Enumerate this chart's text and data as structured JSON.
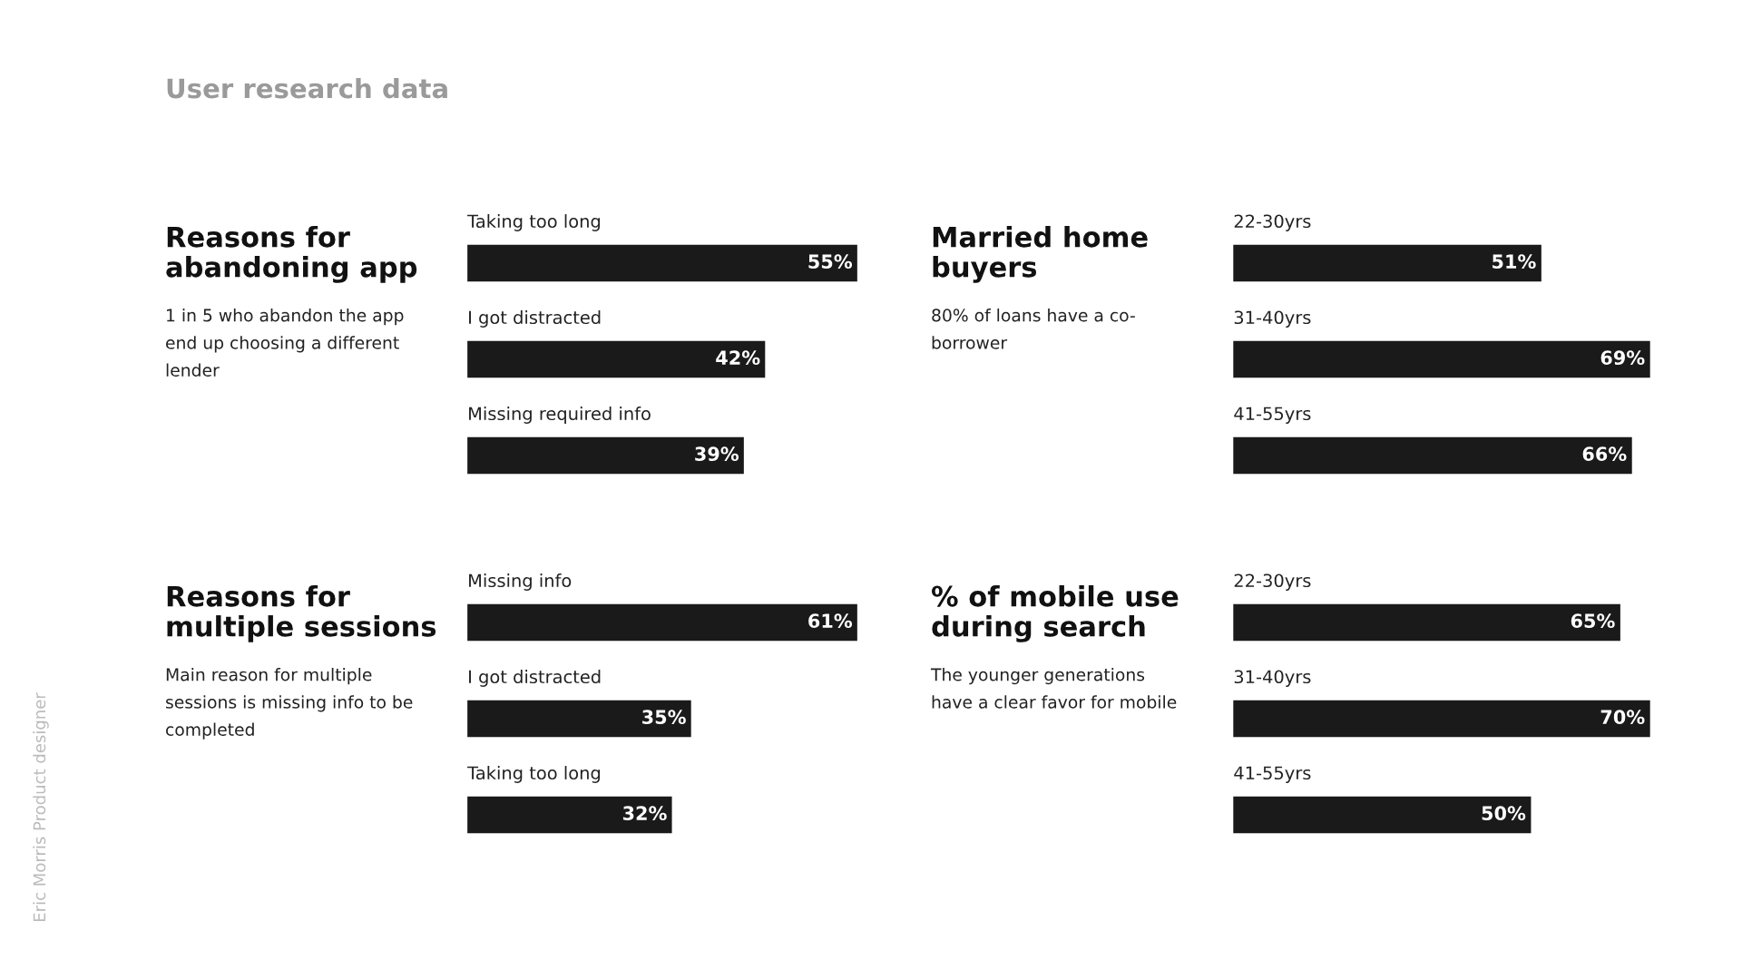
{
  "chart_data": [
    {
      "type": "bar",
      "orientation": "horizontal",
      "title": "Reasons for\nabandoning app",
      "subtitle": "1 in 5 who abandon the app\nend up choosing a different\nlender",
      "annotations": [
        "User research data",
        "Eric Morris Product designer"
      ],
      "categories": [
        "Taking too long",
        "I got distracted",
        "Missing required info"
      ],
      "values": [
        55,
        42,
        39
      ],
      "value_labels": [
        "55%",
        "42%",
        "39%"
      ],
      "color": "#1a1a1a"
    },
    {
      "type": "bar",
      "orientation": "horizontal",
      "title": "Married home\nbuyers",
      "subtitle": "80% of loans have a co-\nborrower",
      "categories": [
        "22-30yrs",
        "31-40yrs",
        "41-55yrs"
      ],
      "values": [
        51,
        69,
        66
      ],
      "value_labels": [
        "51%",
        "69%",
        "66%"
      ],
      "color": "#1a1a1a"
    },
    {
      "type": "bar",
      "orientation": "horizontal",
      "title": "Reasons for\nmultiple sessions",
      "subtitle": "Main reason for multiple\nsessions is missing info to be\ncompleted",
      "categories": [
        "Missing info",
        "I got distracted",
        "Taking too long"
      ],
      "values": [
        61,
        35,
        32
      ],
      "value_labels": [
        "61%",
        "35%",
        "32%"
      ],
      "color": "#1a1a1a"
    },
    {
      "type": "bar",
      "orientation": "horizontal",
      "title": "% of mobile use\nduring search",
      "subtitle": "The younger generations\nhave a clear favor for mobile",
      "categories": [
        "22-30yrs",
        "31-40yrs",
        "41-55yrs"
      ],
      "values": [
        65,
        70,
        50
      ],
      "value_labels": [
        "65%",
        "70%",
        "50%"
      ],
      "color": "#1a1a1a"
    }
  ]
}
